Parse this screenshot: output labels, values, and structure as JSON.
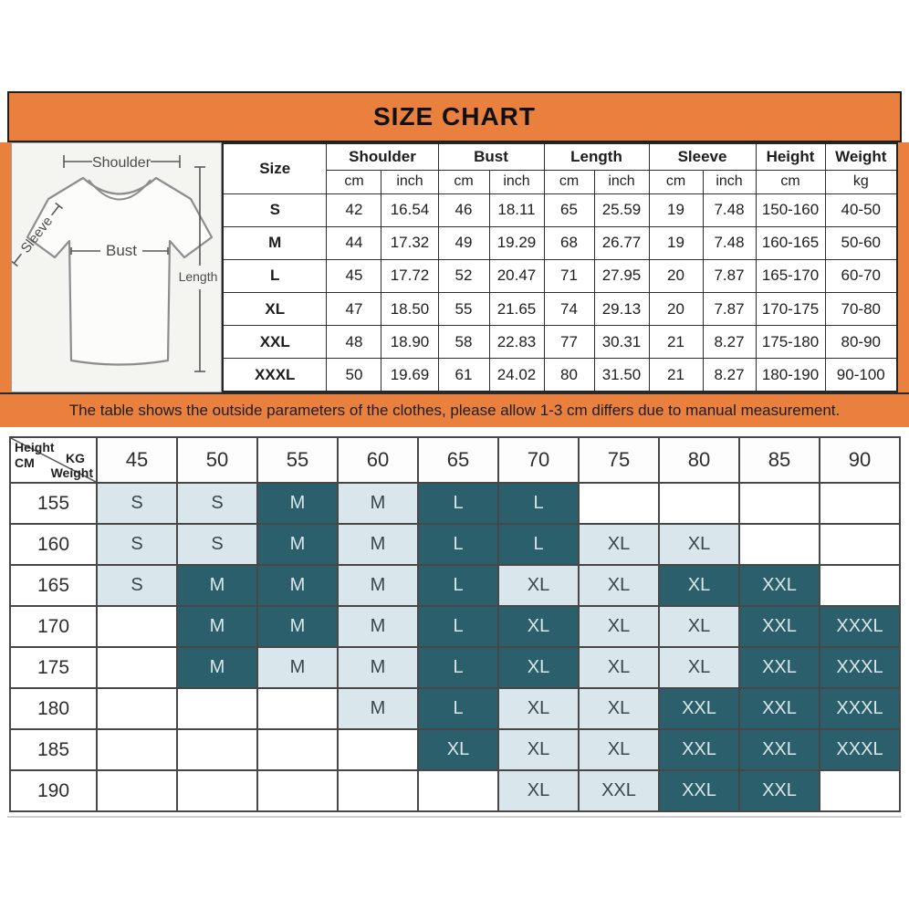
{
  "colors": {
    "accent_orange": "#E9803E",
    "matrix_dark_cell": "#2B5F6C",
    "matrix_light_cell": "#D9E7EC",
    "table_border": "#2B2B2B"
  },
  "header": {
    "title": "SIZE CHART"
  },
  "diagram": {
    "shoulder_label": "Shoulder",
    "sleeve_label": "Sleeve",
    "bust_label": "Bust",
    "length_label": "Length"
  },
  "size_table": {
    "size_label": "Size",
    "groups": [
      {
        "label": "Shoulder",
        "span": 2
      },
      {
        "label": "Bust",
        "span": 2
      },
      {
        "label": "Length",
        "span": 2
      },
      {
        "label": "Sleeve",
        "span": 2
      },
      {
        "label": "Height",
        "span": 1
      },
      {
        "label": "Weight",
        "span": 1
      }
    ],
    "units": [
      "cm",
      "inch",
      "cm",
      "inch",
      "cm",
      "inch",
      "cm",
      "inch",
      "cm",
      "kg"
    ],
    "rows": [
      {
        "size": "S",
        "values": [
          "42",
          "16.54",
          "46",
          "18.11",
          "65",
          "25.59",
          "19",
          "7.48",
          "150-160",
          "40-50"
        ]
      },
      {
        "size": "M",
        "values": [
          "44",
          "17.32",
          "49",
          "19.29",
          "68",
          "26.77",
          "19",
          "7.48",
          "160-165",
          "50-60"
        ]
      },
      {
        "size": "L",
        "values": [
          "45",
          "17.72",
          "52",
          "20.47",
          "71",
          "27.95",
          "20",
          "7.87",
          "165-170",
          "60-70"
        ]
      },
      {
        "size": "XL",
        "values": [
          "47",
          "18.50",
          "55",
          "21.65",
          "74",
          "29.13",
          "20",
          "7.87",
          "170-175",
          "70-80"
        ]
      },
      {
        "size": "XXL",
        "values": [
          "48",
          "18.90",
          "58",
          "22.83",
          "77",
          "30.31",
          "21",
          "8.27",
          "175-180",
          "80-90"
        ]
      },
      {
        "size": "XXXL",
        "values": [
          "50",
          "19.69",
          "61",
          "24.02",
          "80",
          "31.50",
          "21",
          "8.27",
          "180-190",
          "90-100"
        ]
      }
    ]
  },
  "banner": {
    "text": "The table shows the outside parameters of the clothes, please allow 1-3 cm differs due to manual measurement."
  },
  "fit_matrix": {
    "corner": {
      "height_label": "Height",
      "height_unit": "CM",
      "weight_unit": "KG",
      "weight_label": "Weight"
    },
    "weights": [
      "45",
      "50",
      "55",
      "60",
      "65",
      "70",
      "75",
      "80",
      "85",
      "90"
    ],
    "rows": [
      {
        "height": "155",
        "cells": [
          [
            "S",
            "light"
          ],
          [
            "S",
            "light"
          ],
          [
            "M",
            "dark"
          ],
          [
            "M",
            "light"
          ],
          [
            "L",
            "dark"
          ],
          [
            "L",
            "dark"
          ],
          [
            "",
            "empty"
          ],
          [
            "",
            "empty"
          ],
          [
            "",
            "empty"
          ],
          [
            "",
            "empty"
          ]
        ]
      },
      {
        "height": "160",
        "cells": [
          [
            "S",
            "light"
          ],
          [
            "S",
            "light"
          ],
          [
            "M",
            "dark"
          ],
          [
            "M",
            "light"
          ],
          [
            "L",
            "dark"
          ],
          [
            "L",
            "dark"
          ],
          [
            "XL",
            "light"
          ],
          [
            "XL",
            "light"
          ],
          [
            "",
            "empty"
          ],
          [
            "",
            "empty"
          ]
        ]
      },
      {
        "height": "165",
        "cells": [
          [
            "S",
            "light"
          ],
          [
            "M",
            "dark"
          ],
          [
            "M",
            "dark"
          ],
          [
            "M",
            "light"
          ],
          [
            "L",
            "dark"
          ],
          [
            "XL",
            "light"
          ],
          [
            "XL",
            "light"
          ],
          [
            "XL",
            "dark"
          ],
          [
            "XXL",
            "dark"
          ],
          [
            "",
            "empty"
          ]
        ]
      },
      {
        "height": "170",
        "cells": [
          [
            "",
            "empty"
          ],
          [
            "M",
            "dark"
          ],
          [
            "M",
            "dark"
          ],
          [
            "M",
            "light"
          ],
          [
            "L",
            "dark"
          ],
          [
            "XL",
            "dark"
          ],
          [
            "XL",
            "light"
          ],
          [
            "XL",
            "light"
          ],
          [
            "XXL",
            "dark"
          ],
          [
            "XXXL",
            "dark"
          ]
        ]
      },
      {
        "height": "175",
        "cells": [
          [
            "",
            "empty"
          ],
          [
            "M",
            "dark"
          ],
          [
            "M",
            "light"
          ],
          [
            "M",
            "light"
          ],
          [
            "L",
            "dark"
          ],
          [
            "XL",
            "dark"
          ],
          [
            "XL",
            "light"
          ],
          [
            "XL",
            "light"
          ],
          [
            "XXL",
            "dark"
          ],
          [
            "XXXL",
            "dark"
          ]
        ]
      },
      {
        "height": "180",
        "cells": [
          [
            "",
            "empty"
          ],
          [
            "",
            "empty"
          ],
          [
            "",
            "empty"
          ],
          [
            "M",
            "light"
          ],
          [
            "L",
            "dark"
          ],
          [
            "XL",
            "light"
          ],
          [
            "XL",
            "light"
          ],
          [
            "XXL",
            "dark"
          ],
          [
            "XXL",
            "dark"
          ],
          [
            "XXXL",
            "dark"
          ]
        ]
      },
      {
        "height": "185",
        "cells": [
          [
            "",
            "empty"
          ],
          [
            "",
            "empty"
          ],
          [
            "",
            "empty"
          ],
          [
            "",
            "empty"
          ],
          [
            "XL",
            "dark"
          ],
          [
            "XL",
            "light"
          ],
          [
            "XL",
            "light"
          ],
          [
            "XXL",
            "dark"
          ],
          [
            "XXL",
            "dark"
          ],
          [
            "XXXL",
            "dark"
          ]
        ]
      },
      {
        "height": "190",
        "cells": [
          [
            "",
            "empty"
          ],
          [
            "",
            "empty"
          ],
          [
            "",
            "empty"
          ],
          [
            "",
            "empty"
          ],
          [
            "",
            "empty"
          ],
          [
            "XL",
            "light"
          ],
          [
            "XXL",
            "light"
          ],
          [
            "XXL",
            "dark"
          ],
          [
            "XXL",
            "dark"
          ],
          [
            "",
            "empty"
          ]
        ]
      }
    ]
  },
  "chart_data": [
    {
      "type": "table",
      "title": "SIZE CHART",
      "columns": [
        "Size",
        "Shoulder cm",
        "Shoulder inch",
        "Bust cm",
        "Bust inch",
        "Length cm",
        "Length inch",
        "Sleeve cm",
        "Sleeve inch",
        "Height cm",
        "Weight kg"
      ],
      "rows": [
        [
          "S",
          "42",
          "16.54",
          "46",
          "18.11",
          "65",
          "25.59",
          "19",
          "7.48",
          "150-160",
          "40-50"
        ],
        [
          "M",
          "44",
          "17.32",
          "49",
          "19.29",
          "68",
          "26.77",
          "19",
          "7.48",
          "160-165",
          "50-60"
        ],
        [
          "L",
          "45",
          "17.72",
          "52",
          "20.47",
          "71",
          "27.95",
          "20",
          "7.87",
          "165-170",
          "60-70"
        ],
        [
          "XL",
          "47",
          "18.50",
          "55",
          "21.65",
          "74",
          "29.13",
          "20",
          "7.87",
          "170-175",
          "70-80"
        ],
        [
          "XXL",
          "48",
          "18.90",
          "58",
          "22.83",
          "77",
          "30.31",
          "21",
          "8.27",
          "175-180",
          "80-90"
        ],
        [
          "XXXL",
          "50",
          "19.69",
          "61",
          "24.02",
          "80",
          "31.50",
          "21",
          "8.27",
          "180-190",
          "90-100"
        ]
      ]
    },
    {
      "type": "table",
      "title": "Recommended size by Height (CM) and Weight (KG)",
      "xlabel": "KG Weight",
      "ylabel": "Height CM",
      "x": [
        "45",
        "50",
        "55",
        "60",
        "65",
        "70",
        "75",
        "80",
        "85",
        "90"
      ],
      "y": [
        "155",
        "160",
        "165",
        "170",
        "175",
        "180",
        "185",
        "190"
      ],
      "cells": [
        [
          "S",
          "S",
          "M",
          "M",
          "L",
          "L",
          "",
          "",
          "",
          ""
        ],
        [
          "S",
          "S",
          "M",
          "M",
          "L",
          "L",
          "XL",
          "XL",
          "",
          ""
        ],
        [
          "S",
          "M",
          "M",
          "M",
          "L",
          "XL",
          "XL",
          "XL",
          "XXL",
          ""
        ],
        [
          "",
          "M",
          "M",
          "M",
          "L",
          "XL",
          "XL",
          "XL",
          "XXL",
          "XXXL"
        ],
        [
          "",
          "M",
          "M",
          "M",
          "L",
          "XL",
          "XL",
          "XL",
          "XXL",
          "XXXL"
        ],
        [
          "",
          "",
          "",
          "M",
          "L",
          "XL",
          "XL",
          "XXL",
          "XXL",
          "XXXL"
        ],
        [
          "",
          "",
          "",
          "",
          "XL",
          "XL",
          "XL",
          "XXL",
          "XXL",
          "XXXL"
        ],
        [
          "",
          "",
          "",
          "",
          "",
          "XL",
          "XXL",
          "XXL",
          "XXL",
          ""
        ]
      ]
    }
  ]
}
